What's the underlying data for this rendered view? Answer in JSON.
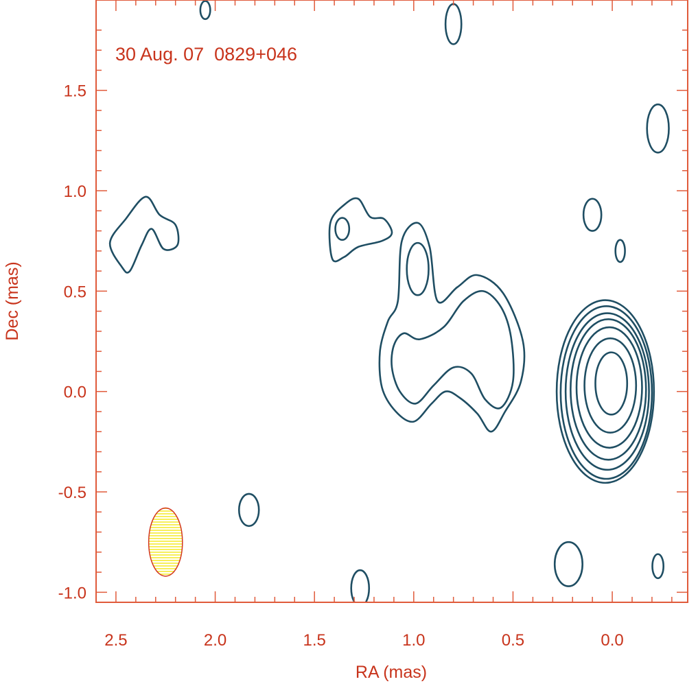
{
  "chart_data": {
    "type": "contour",
    "annotation": "30 Aug. 07  0829+046",
    "xlabel": "RA (mas)",
    "ylabel": "Dec (mas)",
    "xlim": [
      2.6,
      -0.38
    ],
    "ylim": [
      -1.05,
      1.95
    ],
    "xticks": [
      {
        "value": 2.5,
        "label": "2.5"
      },
      {
        "value": 2.0,
        "label": "2.0"
      },
      {
        "value": 1.5,
        "label": "1.5"
      },
      {
        "value": 1.0,
        "label": "1.0"
      },
      {
        "value": 0.5,
        "label": "0.5"
      },
      {
        "value": 0.0,
        "label": "0.0"
      }
    ],
    "yticks": [
      {
        "value": 1.5,
        "label": "1.5"
      },
      {
        "value": 1.0,
        "label": "1.0"
      },
      {
        "value": 0.5,
        "label": "0.5"
      },
      {
        "value": 0.0,
        "label": "0.0"
      },
      {
        "value": -0.5,
        "label": "-0.5"
      },
      {
        "value": -1.0,
        "label": "-1.0"
      }
    ],
    "grid": false,
    "colors": {
      "frame": "#e05a3a",
      "text": "#c8341c",
      "contour": "#1f4e63",
      "beam_fill": "#f7ef5a",
      "beam_edge": "#d2361e"
    },
    "beam": {
      "x": 2.25,
      "y": -0.75,
      "rx": 0.085,
      "ry": 0.17
    },
    "core_contours": [
      {
        "cx": 0.005,
        "cy": 0.04,
        "rx": 0.08,
        "ry": 0.155
      },
      {
        "cx": 0.01,
        "cy": 0.03,
        "rx": 0.13,
        "ry": 0.235
      },
      {
        "cx": 0.015,
        "cy": 0.02,
        "rx": 0.165,
        "ry": 0.3
      },
      {
        "cx": 0.02,
        "cy": 0.01,
        "rx": 0.19,
        "ry": 0.35
      },
      {
        "cx": 0.025,
        "cy": 0.0,
        "rx": 0.21,
        "ry": 0.39
      },
      {
        "cx": 0.03,
        "cy": -0.005,
        "rx": 0.23,
        "ry": 0.43
      },
      {
        "cx": 0.035,
        "cy": 0.0,
        "rx": 0.245,
        "ry": 0.455
      }
    ],
    "small_contours": [
      {
        "cx": 2.05,
        "cy": 1.9,
        "rx": 0.025,
        "ry": 0.045
      },
      {
        "cx": 0.8,
        "cy": 1.83,
        "rx": 0.04,
        "ry": 0.1
      },
      {
        "cx": -0.23,
        "cy": 1.31,
        "rx": 0.055,
        "ry": 0.12
      },
      {
        "cx": 0.1,
        "cy": 0.88,
        "rx": 0.045,
        "ry": 0.08
      },
      {
        "cx": -0.04,
        "cy": 0.7,
        "rx": 0.024,
        "ry": 0.055
      },
      {
        "cx": 0.98,
        "cy": 0.61,
        "rx": 0.055,
        "ry": 0.13
      },
      {
        "cx": 1.36,
        "cy": 0.81,
        "rx": 0.035,
        "ry": 0.055
      },
      {
        "cx": 1.83,
        "cy": -0.59,
        "rx": 0.05,
        "ry": 0.08
      },
      {
        "cx": 1.27,
        "cy": -0.98,
        "rx": 0.045,
        "ry": 0.09
      },
      {
        "cx": 0.22,
        "cy": -0.86,
        "rx": 0.07,
        "ry": 0.11
      },
      {
        "cx": -0.23,
        "cy": -0.87,
        "rx": 0.028,
        "ry": 0.06
      }
    ],
    "outer_contours": [
      {
        "name": "left-blob",
        "points": [
          [
            2.47,
            0.62
          ],
          [
            2.53,
            0.74
          ],
          [
            2.45,
            0.86
          ],
          [
            2.35,
            0.97
          ],
          [
            2.28,
            0.88
          ],
          [
            2.2,
            0.83
          ],
          [
            2.19,
            0.73
          ],
          [
            2.26,
            0.71
          ],
          [
            2.32,
            0.81
          ],
          [
            2.37,
            0.73
          ],
          [
            2.43,
            0.6
          ]
        ]
      },
      {
        "name": "upper-mid-blob",
        "points": [
          [
            1.41,
            0.66
          ],
          [
            1.42,
            0.84
          ],
          [
            1.35,
            0.93
          ],
          [
            1.28,
            0.96
          ],
          [
            1.22,
            0.87
          ],
          [
            1.15,
            0.86
          ],
          [
            1.11,
            0.79
          ],
          [
            1.16,
            0.75
          ],
          [
            1.28,
            0.72
          ],
          [
            1.35,
            0.67
          ]
        ]
      },
      {
        "name": "jet-outer",
        "points": [
          [
            0.55,
            0.49
          ],
          [
            0.68,
            0.58
          ],
          [
            0.78,
            0.52
          ],
          [
            0.88,
            0.45
          ],
          [
            0.92,
            0.72
          ],
          [
            0.98,
            0.84
          ],
          [
            1.06,
            0.75
          ],
          [
            1.08,
            0.45
          ],
          [
            1.13,
            0.35
          ],
          [
            1.17,
            0.2
          ],
          [
            1.16,
            0.02
          ],
          [
            1.09,
            -0.1
          ],
          [
            1.0,
            -0.15
          ],
          [
            0.91,
            -0.06
          ],
          [
            0.84,
            0.0
          ],
          [
            0.77,
            -0.03
          ],
          [
            0.68,
            -0.11
          ],
          [
            0.61,
            -0.2
          ],
          [
            0.54,
            -0.1
          ],
          [
            0.46,
            0.05
          ],
          [
            0.45,
            0.25
          ]
        ]
      },
      {
        "name": "jet-inner",
        "points": [
          [
            0.56,
            0.42
          ],
          [
            0.65,
            0.5
          ],
          [
            0.75,
            0.45
          ],
          [
            0.85,
            0.32
          ],
          [
            0.97,
            0.26
          ],
          [
            1.05,
            0.29
          ],
          [
            1.1,
            0.23
          ],
          [
            1.11,
            0.12
          ],
          [
            1.07,
            0.0
          ],
          [
            0.99,
            -0.06
          ],
          [
            0.9,
            0.03
          ],
          [
            0.8,
            0.12
          ],
          [
            0.71,
            0.09
          ],
          [
            0.64,
            -0.04
          ],
          [
            0.56,
            -0.08
          ],
          [
            0.5,
            0.05
          ],
          [
            0.51,
            0.27
          ]
        ]
      }
    ]
  }
}
